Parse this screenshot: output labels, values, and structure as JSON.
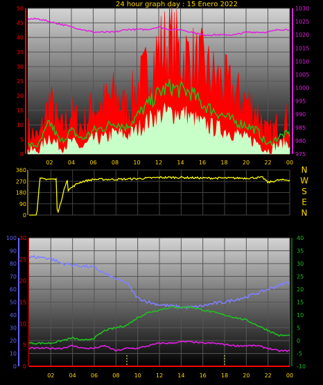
{
  "title": "24 hour graph day : 15 Enero 2022",
  "x_ticks": [
    "02",
    "04",
    "06",
    "08",
    "10",
    "12",
    "14",
    "16",
    "18",
    "20",
    "22",
    "00"
  ],
  "colors": {
    "wind_gust": "#ff0000",
    "wind_avg": "#20c020",
    "wind_low": "#c8ffc8",
    "pressure": "#e020e0",
    "direction": "#ffff00",
    "humidity": "#8080ff",
    "dewpoint": "#e020e0",
    "temperature": "#20c020",
    "rain": "#ff0000",
    "axis_red": "#ff0000",
    "axis_magenta": "#e020e0",
    "axis_blue": "#6464ff",
    "axis_green": "#20c020",
    "axis_yellow": "#ffd800"
  },
  "chart_data": [
    {
      "type": "area",
      "name": "wind",
      "y_left": {
        "ticks": [
          0,
          5,
          10,
          15,
          20,
          25,
          30,
          35,
          40,
          45,
          50
        ],
        "ylim": [
          0,
          50
        ]
      },
      "y_right": {
        "ticks": [
          975,
          980,
          985,
          990,
          995,
          1000,
          1005,
          1010,
          1015,
          1020,
          1025,
          1030
        ],
        "ylim": [
          975,
          1030
        ]
      },
      "hours": [
        0,
        1,
        2,
        3,
        4,
        5,
        6,
        7,
        8,
        9,
        10,
        11,
        12,
        13,
        14,
        15,
        16,
        17,
        18,
        19,
        20,
        21,
        22,
        23,
        24
      ],
      "series": [
        {
          "key": "gust",
          "axis": "left",
          "values": [
            8,
            5,
            18,
            8,
            14,
            9,
            16,
            17,
            20,
            15,
            22,
            28,
            35,
            38,
            34,
            32,
            30,
            26,
            24,
            20,
            18,
            15,
            6,
            10,
            12
          ]
        },
        {
          "key": "avg",
          "axis": "left",
          "values": [
            3,
            3,
            11,
            4,
            8,
            5,
            8,
            9,
            11,
            9,
            13,
            17,
            21,
            23,
            22,
            21,
            17,
            15,
            13,
            11,
            10,
            8,
            3,
            6,
            7
          ]
        },
        {
          "key": "low",
          "axis": "left",
          "values": [
            1,
            1,
            6,
            2,
            4,
            2,
            5,
            5,
            7,
            6,
            8,
            11,
            13,
            14,
            14,
            12,
            10,
            9,
            8,
            7,
            5,
            4,
            1,
            3,
            4
          ]
        },
        {
          "key": "pressure",
          "axis": "right",
          "values": [
            1026,
            1026,
            1025,
            1024,
            1023,
            1022,
            1021,
            1021,
            1021,
            1022,
            1022,
            1022,
            1023,
            1022,
            1022,
            1021,
            1020,
            1020,
            1020,
            1020,
            1021,
            1021,
            1021,
            1022,
            1022
          ]
        }
      ]
    },
    {
      "type": "line",
      "name": "direction",
      "yticks": [
        0,
        90,
        180,
        270,
        360
      ],
      "ylim": [
        0,
        360
      ],
      "compass": [
        "N",
        "W",
        "S",
        "E",
        "N"
      ],
      "hours": [
        0,
        0.7,
        1.0,
        2.5,
        2.6,
        3.5,
        3.6,
        4.5,
        5,
        6,
        8,
        10,
        12,
        14,
        16,
        18,
        20,
        21.5,
        22,
        22.5,
        23,
        24
      ],
      "values": [
        0,
        0,
        290,
        285,
        0,
        290,
        200,
        255,
        270,
        285,
        285,
        290,
        300,
        300,
        295,
        295,
        295,
        300,
        260,
        270,
        280,
        280
      ]
    },
    {
      "type": "line",
      "name": "temperature-humidity",
      "y_left_outer": {
        "ticks": [
          0,
          10,
          20,
          30,
          40,
          50,
          60,
          70,
          80,
          90,
          100
        ],
        "ylim": [
          0,
          100
        ]
      },
      "y_left_inner": {
        "ticks": [
          0,
          5,
          10,
          15,
          20,
          25,
          30
        ],
        "ylim": [
          0,
          30
        ]
      },
      "y_right": {
        "ticks": [
          -10,
          -5,
          0,
          5,
          10,
          15,
          20,
          25,
          30,
          35,
          40
        ],
        "ylim": [
          -10,
          40
        ]
      },
      "hours": [
        0,
        1,
        2,
        3,
        4,
        5,
        6,
        7,
        8,
        9,
        10,
        11,
        12,
        13,
        14,
        15,
        16,
        17,
        18,
        19,
        20,
        21,
        22,
        23,
        24
      ],
      "series": [
        {
          "key": "humidity",
          "axis": "outer",
          "values": [
            85,
            85,
            84,
            80,
            79,
            78,
            77,
            72,
            68,
            65,
            53,
            50,
            48,
            47,
            46,
            46,
            47,
            49,
            50,
            52,
            54,
            57,
            60,
            63,
            66
          ]
        },
        {
          "key": "temperature",
          "axis": "right",
          "values": [
            -1,
            -1,
            -1,
            0,
            1,
            0,
            1,
            4,
            5,
            6,
            9,
            11,
            12,
            13,
            13,
            13,
            12,
            11,
            10,
            9,
            8,
            6,
            4,
            2,
            2
          ]
        },
        {
          "key": "dewpoint",
          "axis": "right",
          "values": [
            -3,
            -3,
            -3,
            -3,
            -2,
            -3,
            -3,
            -2,
            -4,
            -3,
            -3,
            -2,
            -1,
            -1,
            -0.5,
            -0.5,
            -1,
            -1,
            -1.5,
            -2,
            -2,
            -2,
            -3,
            -4,
            -4
          ]
        },
        {
          "key": "rain",
          "axis": "inner",
          "values": [
            0,
            0,
            0,
            0,
            0,
            0,
            0,
            0,
            0,
            0,
            0,
            0,
            0,
            0,
            0,
            0,
            0,
            0,
            0,
            0,
            0,
            0,
            0,
            0,
            0
          ]
        }
      ]
    }
  ]
}
